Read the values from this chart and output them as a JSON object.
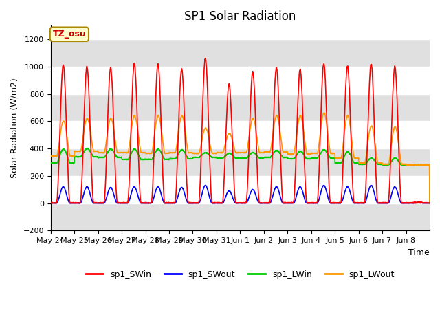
{
  "title": "SP1 Solar Radiation",
  "xlabel": "Time",
  "ylabel": "Solar Radiation (W/m2)",
  "ylim": [
    -200,
    1300
  ],
  "yticks": [
    -200,
    0,
    200,
    400,
    600,
    800,
    1000,
    1200
  ],
  "annotation_text": "TZ_osu",
  "annotation_color": "#cc0000",
  "annotation_bg": "#ffffcc",
  "annotation_border": "#aa8800",
  "line_colors": {
    "sp1_SWin": "#ff0000",
    "sp1_SWout": "#0000ff",
    "sp1_LWin": "#00cc00",
    "sp1_LWout": "#ff9900"
  },
  "legend_labels": [
    "sp1_SWin",
    "sp1_SWout",
    "sp1_LWin",
    "sp1_LWout"
  ],
  "bg_color": "#ffffff",
  "plot_bg_color": "#ffffff",
  "grid_band_color": "#e0e0e0",
  "num_days": 16,
  "SWin_peaks": [
    1010,
    1000,
    990,
    1020,
    1020,
    980,
    1060,
    870,
    960,
    990,
    980,
    1020,
    1005,
    1020,
    1000,
    5
  ],
  "SWout_peaks": [
    120,
    120,
    115,
    120,
    120,
    115,
    130,
    90,
    100,
    120,
    120,
    130,
    120,
    130,
    120,
    5
  ],
  "LWin_base": [
    295,
    340,
    335,
    320,
    320,
    325,
    335,
    330,
    330,
    335,
    325,
    330,
    295,
    285,
    280,
    280
  ],
  "LWin_peaks": [
    395,
    400,
    395,
    395,
    395,
    390,
    370,
    365,
    370,
    385,
    380,
    390,
    375,
    330,
    330,
    280
  ],
  "LWout_base": [
    345,
    380,
    370,
    370,
    365,
    370,
    365,
    370,
    370,
    375,
    360,
    365,
    330,
    295,
    285,
    280
  ],
  "LWout_peaks": [
    600,
    620,
    620,
    640,
    640,
    640,
    550,
    510,
    620,
    640,
    640,
    660,
    640,
    565,
    560,
    280
  ],
  "xticklabels": [
    "May 24",
    "May 25",
    "May 26",
    "May 27",
    "May 28",
    "May 29",
    "May 30",
    "May 31",
    "Jun 1",
    "Jun 2",
    "Jun 3",
    "Jun 4",
    "Jun 5",
    "Jun 6",
    "Jun 7",
    "Jun 8"
  ],
  "title_fontsize": 12,
  "axis_label_fontsize": 9,
  "tick_fontsize": 8,
  "legend_fontsize": 9,
  "linewidth": 1.2
}
